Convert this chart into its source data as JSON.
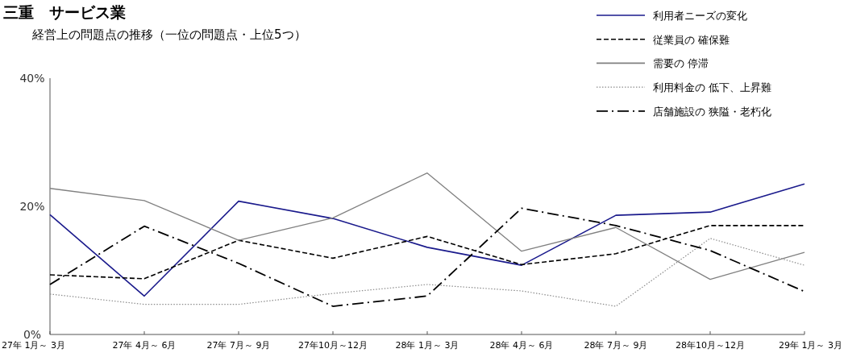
{
  "chart_data": {
    "type": "line",
    "title": "三重　サービス業",
    "subtitle": "経営上の問題点の推移（一位の問題点・上位5つ）",
    "categories": [
      "27年 1月～ 3月",
      "27年 4月～ 6月",
      "27年 7月～ 9月",
      "27年10月～12月",
      "28年 1月～ 3月",
      "28年 4月～ 6月",
      "28年 7月～ 9月",
      "28年10月～12月",
      "29年 1月～ 3月"
    ],
    "series": [
      {
        "name": "利用者ニーズの変化",
        "color": "#1a1a8c",
        "line_style": "solid",
        "values": [
          18.7,
          6.0,
          20.8,
          18.1,
          13.6,
          10.8,
          18.6,
          19.1,
          23.5
        ]
      },
      {
        "name": "従業員の 確保難",
        "color": "#000000",
        "line_style": "dashed",
        "values": [
          9.3,
          8.7,
          14.7,
          11.9,
          15.3,
          10.9,
          12.6,
          17.0,
          17.0
        ]
      },
      {
        "name": "需要の 停滞",
        "color": "#808080",
        "line_style": "solid",
        "values": [
          22.8,
          20.9,
          14.7,
          18.2,
          25.2,
          13.0,
          16.7,
          8.6,
          12.8
        ]
      },
      {
        "name": "利用料金の 低下、上昇難",
        "color": "#8c8c8c",
        "line_style": "dotted",
        "values": [
          6.3,
          4.7,
          4.7,
          6.4,
          7.8,
          6.8,
          4.4,
          15.0,
          10.8
        ]
      },
      {
        "name": "店舗施設の 狭隘・老朽化",
        "color": "#000000",
        "line_style": "dashdot",
        "values": [
          7.8,
          16.9,
          11.1,
          4.4,
          6.0,
          19.7,
          17.0,
          13.1,
          6.7
        ]
      }
    ],
    "ylim": [
      0,
      40
    ],
    "yticks": [
      {
        "value": 0,
        "label": "0%"
      },
      {
        "value": 20,
        "label": "20%"
      },
      {
        "value": 40,
        "label": "40%"
      }
    ],
    "grid": false,
    "legend": "top right",
    "marker": "none"
  }
}
